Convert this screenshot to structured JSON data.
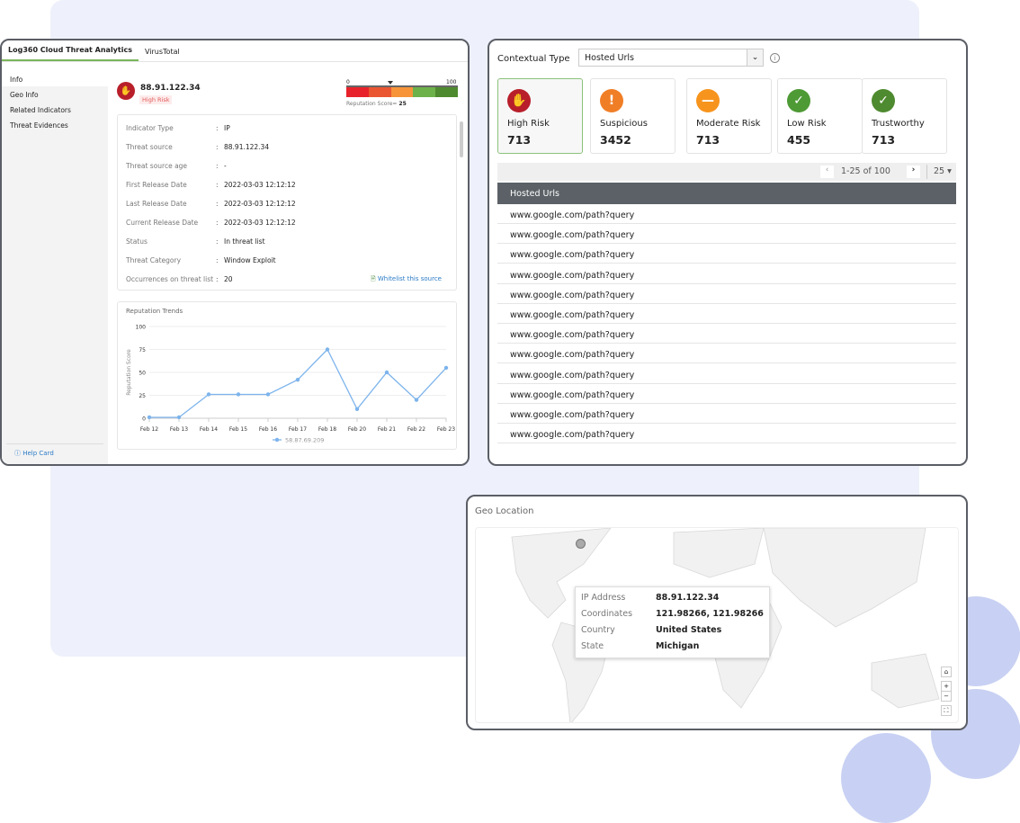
{
  "left_panel": {
    "tabs": [
      {
        "label": "Log360 Cloud Threat Analytics",
        "active": true
      },
      {
        "label": "VirusTotal",
        "active": false
      }
    ],
    "sidebar": {
      "items": [
        "Info",
        "Geo Info",
        "Related Indicators",
        "Threat Evidences"
      ],
      "help": "Help Card"
    },
    "header": {
      "ip": "88.91.122.34",
      "risk": "High Risk",
      "scale_min": "0",
      "scale_max": "100",
      "score_label": "Reputation Score=",
      "score": "25",
      "scale_colors": [
        "#e8222b",
        "#ea5632",
        "#f7943a",
        "#6db14a",
        "#4e8a2f"
      ]
    },
    "details": [
      {
        "key": "Indicator Type",
        "value": "IP"
      },
      {
        "key": "Threat source",
        "value": "88.91.122.34"
      },
      {
        "key": "Threat source age",
        "value": "-"
      },
      {
        "key": "First Release Date",
        "value": "2022-03-03 12:12:12"
      },
      {
        "key": "Last Release Date",
        "value": "2022-03-03 12:12:12"
      },
      {
        "key": "Current Release Date",
        "value": "2022-03-03 12:12:12"
      },
      {
        "key": "Status",
        "value": "In threat list"
      },
      {
        "key": "Threat Category",
        "value": "Window Exploit"
      },
      {
        "key": "Occurrences on threat list",
        "value": "20"
      }
    ],
    "whitelist_label": "Whitelist this source"
  },
  "chart_data": {
    "type": "line",
    "title": "Reputation Trends",
    "ylabel": "Reputation Score",
    "xlabel": "",
    "categories": [
      "Feb 12",
      "Feb 13",
      "Feb 14",
      "Feb 15",
      "Feb 16",
      "Feb 17",
      "Feb 18",
      "Feb 20",
      "Feb 21",
      "Feb 22",
      "Feb 23"
    ],
    "series": [
      {
        "name": "58.87.69.209",
        "values": [
          1,
          1,
          26,
          26,
          26,
          42,
          75,
          10,
          50,
          20,
          55
        ],
        "color": "#7db4ec"
      }
    ],
    "yticks": [
      "0",
      "25",
      "50",
      "75",
      "100"
    ],
    "ylim": [
      0,
      100
    ],
    "grid": true,
    "legend": "bottom"
  },
  "right_panel": {
    "contextual_label": "Contextual Type",
    "select_value": "Hosted Urls",
    "cards": [
      {
        "label": "High Risk",
        "count": "713",
        "color": "#b81f2a",
        "icon": "hand-stop-icon",
        "glyph": "✋"
      },
      {
        "label": "Suspicious",
        "count": "3452",
        "color": "#f07e27",
        "icon": "exclamation-icon",
        "glyph": "!"
      },
      {
        "label": "Moderate Risk",
        "count": "713",
        "color": "#f7941d",
        "icon": "minus-icon",
        "glyph": "—"
      },
      {
        "label": "Low Risk",
        "count": "455",
        "color": "#4e9a35",
        "icon": "check-icon",
        "glyph": "✓"
      },
      {
        "label": "Trustworthy",
        "count": "713",
        "color": "#4e8a2f",
        "icon": "check-icon",
        "glyph": "✓"
      }
    ],
    "pagination": {
      "range": "1-25 of 100",
      "per_page": "25"
    },
    "table_header": "Hosted Urls",
    "urls": [
      "www.google.com/path?query",
      "www.google.com/path?query",
      "www.google.com/path?query",
      "www.google.com/path?query",
      "www.google.com/path?query",
      "www.google.com/path?query",
      "www.google.com/path?query",
      "www.google.com/path?query",
      "www.google.com/path?query",
      "www.google.com/path?query",
      "www.google.com/path?query",
      "www.google.com/path?query"
    ]
  },
  "geo": {
    "title": "Geo Location",
    "tooltip": [
      {
        "key": "IP Address",
        "value": "88.91.122.34"
      },
      {
        "key": "Coordinates",
        "value": "121.98266, 121.98266"
      },
      {
        "key": "Country",
        "value": "United States"
      },
      {
        "key": "State",
        "value": "Michigan"
      }
    ]
  }
}
